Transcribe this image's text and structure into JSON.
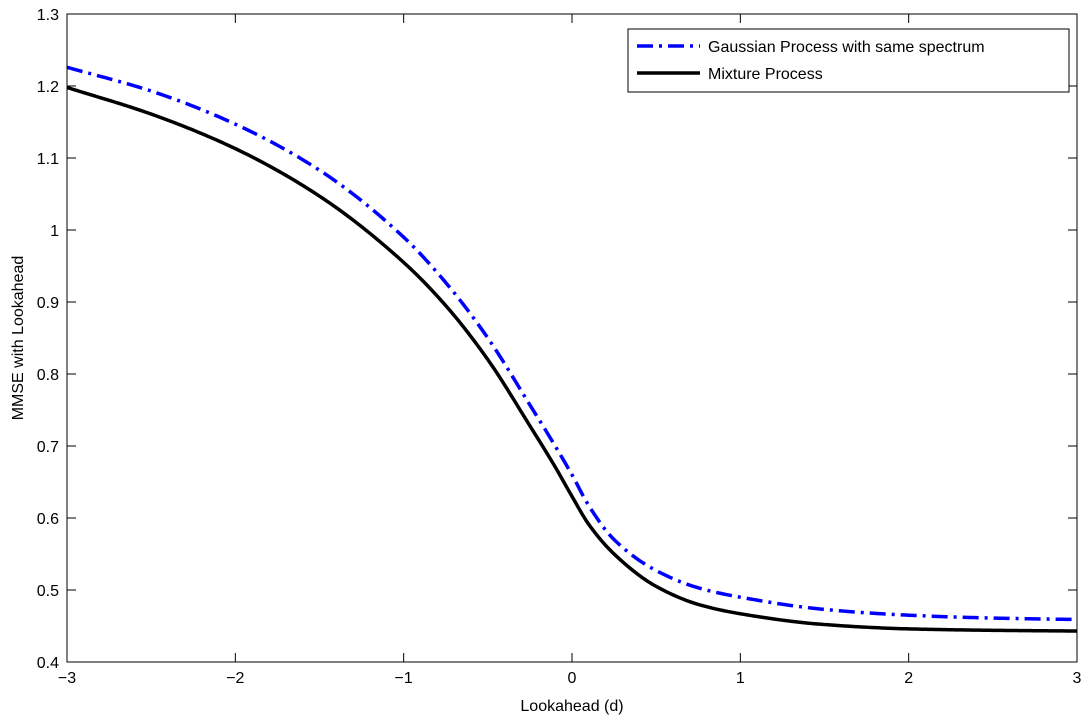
{
  "chart_data": {
    "type": "line",
    "title": "",
    "xlabel": "Lookahead (d)",
    "ylabel": "MMSE with Lookahead",
    "xlim": [
      -3,
      3
    ],
    "ylim": [
      0.4,
      1.3
    ],
    "xticks": [
      -3,
      -2,
      -1,
      0,
      1,
      2,
      3
    ],
    "xtick_labels": [
      "−3",
      "−2",
      "−1",
      "0",
      "1",
      "2",
      "3"
    ],
    "yticks": [
      0.4,
      0.5,
      0.6,
      0.7,
      0.8,
      0.9,
      1.0,
      1.1,
      1.2,
      1.3
    ],
    "ytick_labels": [
      "0.4",
      "0.5",
      "0.6",
      "0.7",
      "0.8",
      "0.9",
      "1",
      "1.1",
      "1.2",
      "1.3"
    ],
    "grid": false,
    "legend_position": "top-right",
    "series": [
      {
        "name": "Gaussian Process with same spectrum",
        "color": "#0000ff",
        "style": "dash-dot",
        "x": [
          -3,
          -2.5,
          -2,
          -1.5,
          -1,
          -0.75,
          -0.5,
          -0.25,
          -0.1,
          0,
          0.1,
          0.25,
          0.5,
          0.75,
          1,
          1.5,
          2,
          2.5,
          3
        ],
        "y": [
          1.226,
          1.193,
          1.147,
          1.083,
          0.99,
          0.927,
          0.85,
          0.757,
          0.7,
          0.66,
          0.617,
          0.57,
          0.527,
          0.503,
          0.49,
          0.473,
          0.465,
          0.461,
          0.459
        ]
      },
      {
        "name": "Mixture Process",
        "color": "#000000",
        "style": "solid",
        "x": [
          -3,
          -2.5,
          -2,
          -1.5,
          -1,
          -0.75,
          -0.5,
          -0.25,
          -0.1,
          0,
          0.1,
          0.25,
          0.5,
          0.75,
          1,
          1.5,
          2,
          2.5,
          3
        ],
        "y": [
          1.198,
          1.161,
          1.113,
          1.047,
          0.955,
          0.895,
          0.82,
          0.728,
          0.671,
          0.63,
          0.591,
          0.55,
          0.505,
          0.48,
          0.467,
          0.452,
          0.446,
          0.444,
          0.443
        ]
      }
    ]
  }
}
